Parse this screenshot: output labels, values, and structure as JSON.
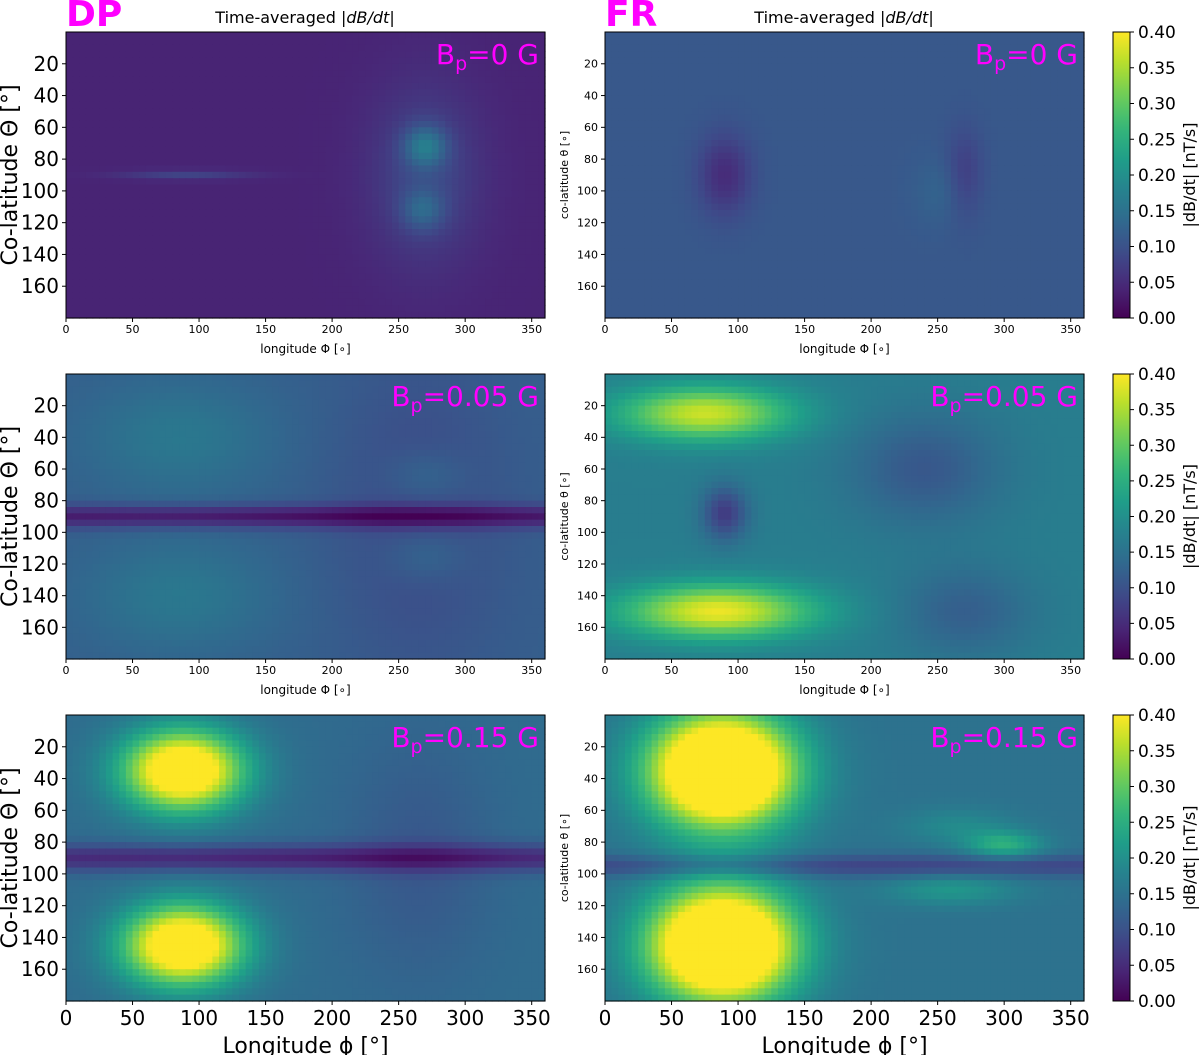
{
  "figure": {
    "dp_label": "DP",
    "fr_label": "FR",
    "title_prefix": "Time-averaged ",
    "title_math": "|dB/dt|",
    "accent_color": "#ff00ff"
  },
  "chart_data": [
    {
      "type": "heatmap",
      "model": "DP",
      "panel": "Bp=0 G",
      "annotation_base": "B",
      "annotation_sub": "p",
      "annotation_rest": "=0 G",
      "xlabel": "longitude Φ [∘]",
      "ylabel": "Co-latitude Θ [°]",
      "xlim": [
        0,
        360
      ],
      "ylim": [
        180,
        0
      ],
      "xticks": [
        0,
        50,
        100,
        150,
        200,
        250,
        300,
        350
      ],
      "yticks": [
        20,
        40,
        60,
        80,
        100,
        120,
        140,
        160
      ],
      "clim": [
        0,
        0.4
      ],
      "base": 0.04,
      "features": [
        {
          "lon": 270,
          "lat": 90,
          "slon": 28,
          "slat": 38,
          "amp": 0.05
        },
        {
          "lon": 270,
          "lat": 72,
          "slon": 11,
          "slat": 9,
          "amp": 0.09
        },
        {
          "lon": 268,
          "lat": 112,
          "slon": 11,
          "slat": 9,
          "amp": 0.06
        },
        {
          "lon": 90,
          "lat": 90,
          "slon": 35,
          "slat": 2,
          "amp": 0.04
        }
      ]
    },
    {
      "type": "heatmap",
      "model": "FR",
      "panel": "Bp=0 G",
      "annotation_base": "B",
      "annotation_sub": "p",
      "annotation_rest": "=0 G",
      "xlabel": "longitude Φ [∘]",
      "ylabel": "co-latitude θ [∘]",
      "xlim": [
        0,
        360
      ],
      "ylim": [
        180,
        0
      ],
      "xticks": [
        0,
        50,
        100,
        150,
        200,
        250,
        300,
        350
      ],
      "yticks": [
        20,
        40,
        60,
        80,
        100,
        120,
        140,
        160
      ],
      "clim": [
        0,
        0.4
      ],
      "base": 0.11,
      "features": [
        {
          "lon": 90,
          "lat": 90,
          "slon": 14,
          "slat": 18,
          "amp": -0.06
        },
        {
          "lon": 270,
          "lat": 90,
          "slon": 10,
          "slat": 20,
          "amp": -0.04
        },
        {
          "lon": 255,
          "lat": 100,
          "slon": 15,
          "slat": 15,
          "amp": 0.02
        }
      ]
    },
    {
      "type": "heatmap",
      "model": "DP",
      "panel": "Bp=0.05 G",
      "annotation_base": "B",
      "annotation_sub": "p",
      "annotation_rest": "=0.05 G",
      "xlabel": "longitude Φ [∘]",
      "ylabel": "Co-latitude Θ [°]",
      "xlim": [
        0,
        360
      ],
      "ylim": [
        180,
        0
      ],
      "xticks": [
        0,
        50,
        100,
        150,
        200,
        250,
        300,
        350
      ],
      "yticks": [
        20,
        40,
        60,
        80,
        100,
        120,
        140,
        160
      ],
      "clim": [
        0,
        0.4
      ],
      "base": 0.12,
      "features": [
        {
          "lon": 85,
          "lat": 40,
          "slon": 50,
          "slat": 25,
          "amp": 0.04
        },
        {
          "lon": 85,
          "lat": 140,
          "slon": 50,
          "slat": 25,
          "amp": 0.04
        },
        {
          "lon": 180,
          "lat": 90,
          "slon": 400,
          "slat": 5,
          "amp": -0.1
        },
        {
          "lon": 265,
          "lat": 90,
          "slon": 45,
          "slat": 70,
          "amp": -0.03
        },
        {
          "lon": 270,
          "lat": 65,
          "slon": 22,
          "slat": 12,
          "amp": 0.03
        },
        {
          "lon": 270,
          "lat": 115,
          "slon": 22,
          "slat": 12,
          "amp": 0.03
        }
      ]
    },
    {
      "type": "heatmap",
      "model": "FR",
      "panel": "Bp=0.05 G",
      "annotation_base": "B",
      "annotation_sub": "p",
      "annotation_rest": "=0.05 G",
      "xlabel": "longitude Φ [∘]",
      "ylabel": "co-latitude θ [∘]",
      "xlim": [
        0,
        360
      ],
      "ylim": [
        180,
        0
      ],
      "xticks": [
        0,
        50,
        100,
        150,
        200,
        250,
        300,
        350
      ],
      "yticks": [
        20,
        40,
        60,
        80,
        100,
        120,
        140,
        160
      ],
      "clim": [
        0,
        0.4
      ],
      "base": 0.17,
      "features": [
        {
          "lon": 75,
          "lat": 25,
          "slon": 45,
          "slat": 12,
          "amp": 0.2
        },
        {
          "lon": 85,
          "lat": 150,
          "slon": 50,
          "slat": 12,
          "amp": 0.22
        },
        {
          "lon": 90,
          "lat": 88,
          "slon": 12,
          "slat": 12,
          "amp": -0.1
        },
        {
          "lon": 240,
          "lat": 60,
          "slon": 40,
          "slat": 25,
          "amp": -0.06
        },
        {
          "lon": 270,
          "lat": 150,
          "slon": 35,
          "slat": 20,
          "amp": -0.05
        }
      ]
    },
    {
      "type": "heatmap",
      "model": "DP",
      "panel": "Bp=0.15 G",
      "annotation_base": "B",
      "annotation_sub": "p",
      "annotation_rest": "=0.15 G",
      "xlabel": "Longitude ϕ [°]",
      "ylabel": "Co-latitude Θ [°]",
      "xlim": [
        0,
        360
      ],
      "ylim": [
        180,
        0
      ],
      "xticks": [
        0,
        50,
        100,
        150,
        200,
        250,
        300,
        350
      ],
      "yticks": [
        20,
        40,
        60,
        80,
        100,
        120,
        140,
        160
      ],
      "clim": [
        0,
        0.4
      ],
      "base": 0.14,
      "features": [
        {
          "lon": 88,
          "lat": 35,
          "slon": 32,
          "slat": 18,
          "amp": 0.35
        },
        {
          "lon": 88,
          "lat": 145,
          "slon": 32,
          "slat": 18,
          "amp": 0.35
        },
        {
          "lon": 180,
          "lat": 90,
          "slon": 400,
          "slat": 6,
          "amp": -0.1
        },
        {
          "lon": 265,
          "lat": 90,
          "slon": 40,
          "slat": 55,
          "amp": -0.03
        }
      ]
    },
    {
      "type": "heatmap",
      "model": "FR",
      "panel": "Bp=0.15 G",
      "annotation_base": "B",
      "annotation_sub": "p",
      "annotation_rest": "=0.15 G",
      "xlabel": "Longitude ϕ [°]",
      "ylabel": "co-latitude θ [∘]",
      "xlim": [
        0,
        360
      ],
      "ylim": [
        180,
        0
      ],
      "xticks": [
        0,
        50,
        100,
        150,
        200,
        250,
        300,
        350
      ],
      "yticks": [
        20,
        40,
        60,
        80,
        100,
        120,
        140,
        160
      ],
      "clim": [
        0,
        0.4
      ],
      "base": 0.15,
      "features": [
        {
          "lon": 88,
          "lat": 35,
          "slon": 38,
          "slat": 25,
          "amp": 0.45
        },
        {
          "lon": 88,
          "lat": 145,
          "slon": 38,
          "slat": 25,
          "amp": 0.45
        },
        {
          "lon": 180,
          "lat": 95,
          "slon": 400,
          "slat": 5,
          "amp": -0.07
        },
        {
          "lon": 300,
          "lat": 82,
          "slon": 20,
          "slat": 6,
          "amp": 0.1
        },
        {
          "lon": 260,
          "lat": 110,
          "slon": 35,
          "slat": 7,
          "amp": 0.06
        },
        {
          "lon": 265,
          "lat": 70,
          "slon": 30,
          "slat": 8,
          "amp": 0.04
        }
      ]
    }
  ],
  "colorbar": {
    "label": "|dB/dt| [nT/s]",
    "ticks": [
      "0.00",
      "0.05",
      "0.10",
      "0.15",
      "0.20",
      "0.25",
      "0.30",
      "0.35",
      "0.40"
    ],
    "range": [
      0,
      0.4
    ],
    "colormap": "viridis"
  }
}
